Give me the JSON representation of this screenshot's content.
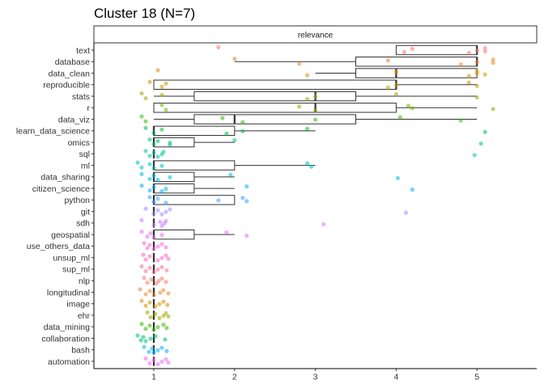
{
  "title": "Cluster 18 (N=7)",
  "chart_data": {
    "type": "boxplot+jitter",
    "title": "Cluster 18 (N=7)",
    "facet_label": "relevance",
    "xlabel": "",
    "ylabel": "",
    "xlim": [
      0.3,
      5.75
    ],
    "x_ticks": [
      1,
      2,
      3,
      4,
      5
    ],
    "grid": false,
    "legend": "none",
    "categories": [
      "text",
      "database",
      "data_clean",
      "reproducible",
      "stats",
      "r",
      "data_viz",
      "learn_data_science",
      "omics",
      "sql",
      "ml",
      "data_sharing",
      "citizen_science",
      "python",
      "git",
      "sdh",
      "geospatial",
      "use_others_data",
      "unsup_ml",
      "sup_ml",
      "nlp",
      "longitudinal",
      "image",
      "ehr",
      "data_mining",
      "collaboration",
      "bash",
      "automation"
    ],
    "colors": [
      "#F8766D",
      "#EA8331",
      "#D89000",
      "#C09B00",
      "#A3A500",
      "#7CAE00",
      "#39B600",
      "#00BB4E",
      "#00BF7D",
      "#00C1A3",
      "#00BFC4",
      "#00BAE0",
      "#00B0F6",
      "#35A2FF",
      "#9590FF",
      "#C77CFF",
      "#E76BF3",
      "#FA62DB",
      "#FF62BC",
      "#FF6C91",
      "#F8766D",
      "#EA8331",
      "#D89000",
      "#A3A500",
      "#39B600",
      "#00BF7D",
      "#00B0F6",
      "#E76BF3"
    ],
    "series": [
      {
        "name": "text",
        "box": {
          "lo": 4,
          "q1": 4,
          "med": 5,
          "q3": 5,
          "hi": 5
        },
        "points": [
          1.8,
          4.1,
          4.2,
          4.9,
          5,
          5.1,
          5.1
        ]
      },
      {
        "name": "database",
        "box": {
          "lo": 2,
          "q1": 3.5,
          "med": 5,
          "q3": 5,
          "hi": 5
        },
        "points": [
          2,
          2.8,
          3.9,
          4.8,
          5,
          5.2,
          5.2
        ]
      },
      {
        "name": "data_clean",
        "box": {
          "lo": 3,
          "q1": 3.5,
          "med": 4,
          "q3": 5,
          "hi": 5
        },
        "points": [
          1.05,
          2.9,
          4,
          4.9,
          5,
          5,
          5.1
        ]
      },
      {
        "name": "reproducible",
        "box": {
          "lo": 1,
          "q1": 1,
          "med": 4,
          "q3": 4,
          "hi": 5
        },
        "points": [
          0.95,
          1.1,
          1.15,
          3.9,
          4,
          4.9,
          5
        ]
      },
      {
        "name": "stats",
        "box": {
          "lo": 1,
          "q1": 1.5,
          "med": 3,
          "q3": 3.5,
          "hi": 5
        },
        "points": [
          0.85,
          0.9,
          1.1,
          2.9,
          3,
          4,
          5
        ]
      },
      {
        "name": "r",
        "box": {
          "lo": 1,
          "q1": 1,
          "med": 3,
          "q3": 4,
          "hi": 5
        },
        "points": [
          1.1,
          1.15,
          2.8,
          3,
          4.2,
          4.15,
          5.2
        ]
      },
      {
        "name": "data_viz",
        "box": {
          "lo": 1,
          "q1": 1.5,
          "med": 2,
          "q3": 3.5,
          "hi": 5
        },
        "points": [
          0.85,
          0.9,
          1.85,
          2.1,
          3,
          4.05,
          4.8
        ]
      },
      {
        "name": "learn_data_science",
        "box": {
          "lo": 1,
          "q1": 1,
          "med": 1,
          "q3": 2,
          "hi": 3
        },
        "points": [
          0.9,
          1,
          1.1,
          1.9,
          2.1,
          2.9,
          5.1
        ]
      },
      {
        "name": "omics",
        "box": {
          "lo": 1,
          "q1": 1,
          "med": 1,
          "q3": 1.5,
          "hi": 2
        },
        "points": [
          0.95,
          1,
          1.05,
          1.2,
          1.2,
          2,
          5.05
        ]
      },
      {
        "name": "sql",
        "box": {
          "lo": 1,
          "q1": 1,
          "med": 1,
          "q3": 1,
          "hi": 1
        },
        "points": [
          0.9,
          0.95,
          1,
          1.05,
          1.1,
          1.12,
          4.97
        ]
      },
      {
        "name": "ml",
        "box": {
          "lo": 1,
          "q1": 1,
          "med": 1,
          "q3": 2,
          "hi": 3
        },
        "points": [
          0.8,
          0.85,
          0.95,
          1,
          1.1,
          2.9,
          2.95
        ]
      },
      {
        "name": "data_sharing",
        "box": {
          "lo": 1,
          "q1": 1,
          "med": 1,
          "q3": 1.5,
          "hi": 2
        },
        "points": [
          0.85,
          0.95,
          1,
          1.05,
          1.2,
          1.95,
          4.02
        ]
      },
      {
        "name": "citizen_science",
        "box": {
          "lo": 1,
          "q1": 1,
          "med": 1,
          "q3": 1.5,
          "hi": 2
        },
        "points": [
          0.85,
          0.95,
          1,
          1.1,
          1.15,
          2.15,
          4.2
        ]
      },
      {
        "name": "python",
        "box": {
          "lo": 1,
          "q1": 1,
          "med": 1,
          "q3": 2,
          "hi": 2
        },
        "points": [
          0.95,
          1,
          1.05,
          1.15,
          1.8,
          2.1,
          2.15
        ]
      },
      {
        "name": "git",
        "box": {
          "lo": 1,
          "q1": 1,
          "med": 1,
          "q3": 1,
          "hi": 1
        },
        "points": [
          0.9,
          1,
          1.05,
          1.1,
          1.15,
          1.2,
          4.12
        ]
      },
      {
        "name": "sdh",
        "box": {
          "lo": 1,
          "q1": 1,
          "med": 1,
          "q3": 1,
          "hi": 1
        },
        "points": [
          0.85,
          1,
          1.08,
          1.1,
          1.13,
          1.15,
          3.1
        ]
      },
      {
        "name": "geospatial",
        "box": {
          "lo": 1,
          "q1": 1,
          "med": 1,
          "q3": 1.5,
          "hi": 2
        },
        "points": [
          0.85,
          0.92,
          0.96,
          1,
          1.1,
          1.9,
          2.15
        ]
      },
      {
        "name": "use_others_data",
        "box": {
          "lo": 1,
          "q1": 1,
          "med": 1,
          "q3": 1,
          "hi": 1
        },
        "points": [
          0.88,
          0.92,
          0.95,
          1,
          1.05,
          1.1,
          1.15
        ]
      },
      {
        "name": "unsup_ml",
        "box": {
          "lo": 1,
          "q1": 1,
          "med": 1,
          "q3": 1,
          "hi": 1
        },
        "points": [
          0.87,
          0.9,
          0.95,
          1.05,
          1.1,
          1.15,
          1.18
        ]
      },
      {
        "name": "sup_ml",
        "box": {
          "lo": 1,
          "q1": 1,
          "med": 1,
          "q3": 1,
          "hi": 1
        },
        "points": [
          0.85,
          0.9,
          0.95,
          1,
          1.05,
          1.1,
          1.16
        ]
      },
      {
        "name": "nlp",
        "box": {
          "lo": 1,
          "q1": 1,
          "med": 1,
          "q3": 1,
          "hi": 1
        },
        "points": [
          0.88,
          0.92,
          0.97,
          1.03,
          1.06,
          1.1,
          1.15
        ]
      },
      {
        "name": "longitudinal",
        "box": {
          "lo": 1,
          "q1": 1,
          "med": 1,
          "q3": 1,
          "hi": 1
        },
        "points": [
          0.83,
          0.9,
          0.95,
          1,
          1.08,
          1.12,
          1.18
        ]
      },
      {
        "name": "image",
        "box": {
          "lo": 1,
          "q1": 1,
          "med": 1,
          "q3": 1,
          "hi": 1
        },
        "points": [
          0.85,
          0.9,
          0.95,
          1.02,
          1.07,
          1.12,
          1.17
        ]
      },
      {
        "name": "ehr",
        "box": {
          "lo": 1,
          "q1": 1,
          "med": 1,
          "q3": 1,
          "hi": 1
        },
        "points": [
          0.92,
          0.96,
          1.02,
          1.07,
          1.12,
          1.15,
          1.18
        ]
      },
      {
        "name": "data_mining",
        "box": {
          "lo": 1,
          "q1": 1,
          "med": 1,
          "q3": 1,
          "hi": 1
        },
        "points": [
          0.85,
          0.9,
          0.95,
          1,
          1.05,
          1.12,
          1.16
        ]
      },
      {
        "name": "collaboration",
        "box": {
          "lo": 1,
          "q1": 1,
          "med": 1,
          "q3": 1,
          "hi": 1
        },
        "points": [
          0.8,
          0.84,
          0.87,
          0.9,
          0.96,
          1.02,
          1.14
        ]
      },
      {
        "name": "bash",
        "box": {
          "lo": 1,
          "q1": 1,
          "med": 1,
          "q3": 1,
          "hi": 1
        },
        "points": [
          0.88,
          0.94,
          0.98,
          1,
          1.05,
          1.1,
          1.16
        ]
      },
      {
        "name": "automation",
        "box": {
          "lo": 1,
          "q1": 1,
          "med": 1,
          "q3": 1,
          "hi": 1
        },
        "points": [
          0.9,
          0.95,
          1,
          1.05,
          1.1,
          1.15,
          1.18
        ]
      }
    ]
  }
}
